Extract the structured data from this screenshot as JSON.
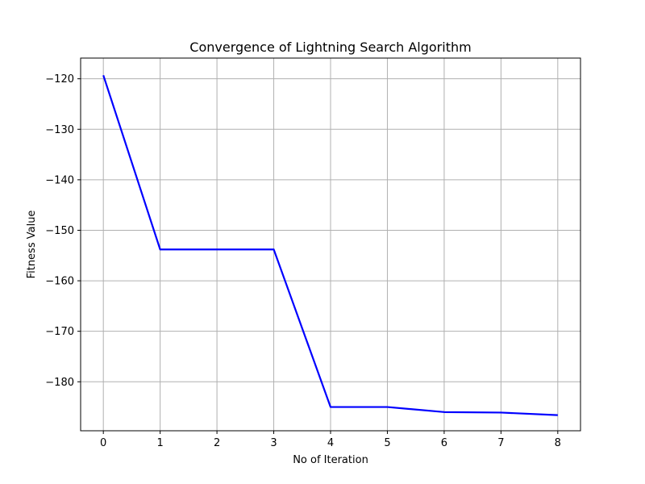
{
  "chart_data": {
    "type": "line",
    "title": "Convergence of Lightning Search Algorithm",
    "xlabel": "No of Iteration",
    "ylabel": "Fitness Value",
    "x": [
      0,
      1,
      2,
      3,
      4,
      5,
      6,
      7,
      8
    ],
    "series": [
      {
        "values": [
          -119.3,
          -153.8,
          -153.8,
          -153.8,
          -185.0,
          -185.0,
          -186.0,
          -186.1,
          -186.6
        ],
        "color": "#0000ff"
      }
    ],
    "xlim": [
      -0.4,
      8.4
    ],
    "ylim": [
      -189.7,
      -115.9
    ],
    "xticks": [
      0,
      1,
      2,
      3,
      4,
      5,
      6,
      7,
      8
    ],
    "xtick_labels": [
      "0",
      "1",
      "2",
      "3",
      "4",
      "5",
      "6",
      "7",
      "8"
    ],
    "yticks": [
      -180,
      -170,
      -160,
      -150,
      -140,
      -130,
      -120
    ],
    "ytick_labels": [
      "−180",
      "−170",
      "−160",
      "−150",
      "−140",
      "−130",
      "−120"
    ],
    "grid": true,
    "legend": "none"
  }
}
